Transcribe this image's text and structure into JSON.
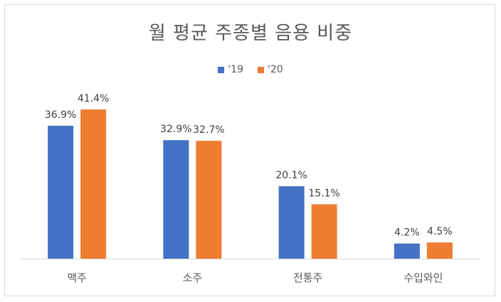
{
  "chart_data": {
    "type": "bar",
    "title": "월 평균 주종별 음용 비중",
    "categories": [
      "맥주",
      "소주",
      "전통주",
      "수입와인"
    ],
    "series": [
      {
        "name": "'19",
        "color": "#4472c4",
        "values": [
          36.9,
          32.9,
          20.1,
          4.2
        ],
        "labels": [
          "36.9%",
          "32.9%",
          "20.1%",
          "4.2%"
        ]
      },
      {
        "name": "'20",
        "color": "#ed7d31",
        "values": [
          41.4,
          32.7,
          15.1,
          4.5
        ],
        "labels": [
          "41.4%",
          "32.7%",
          "15.1%",
          "4.5%"
        ]
      }
    ],
    "ylim": [
      0,
      45
    ],
    "grid": false,
    "legend_position": "top-center"
  }
}
